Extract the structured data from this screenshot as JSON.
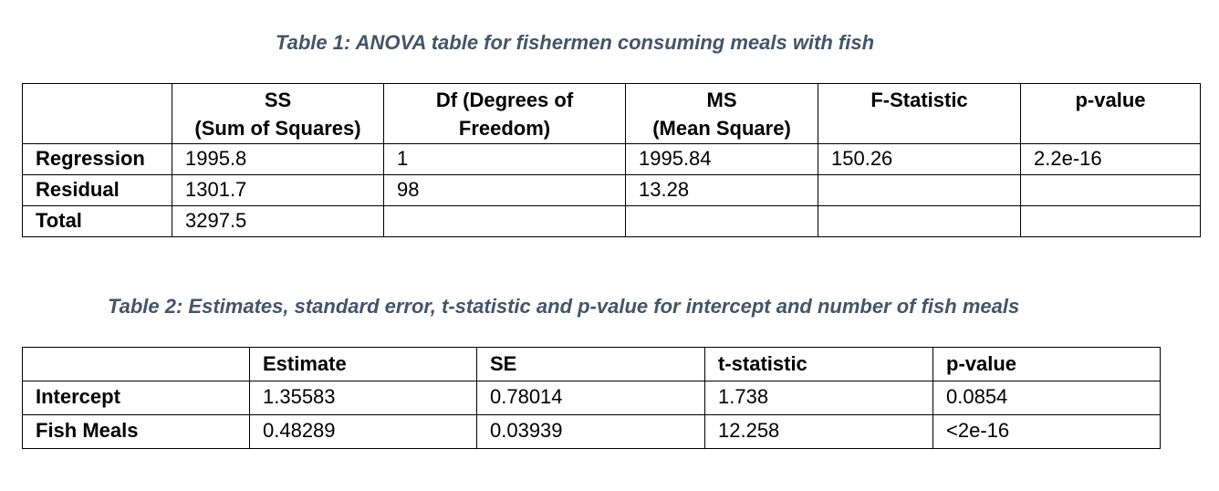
{
  "table1": {
    "caption": "Table 1: ANOVA table for fishermen consuming meals with fish",
    "headers": [
      {
        "line1": "",
        "line2": ""
      },
      {
        "line1": "SS",
        "line2": "(Sum of Squares)"
      },
      {
        "line1": "Df (Degrees of",
        "line2": "Freedom)"
      },
      {
        "line1": "MS",
        "line2": "(Mean Square)"
      },
      {
        "line1": "F-Statistic",
        "line2": ""
      },
      {
        "line1": "p-value",
        "line2": ""
      }
    ],
    "rows": [
      [
        "Regression",
        "1995.8",
        "1",
        "1995.84",
        "150.26",
        "2.2e-16"
      ],
      [
        "Residual",
        "1301.7",
        "98",
        "13.28",
        "",
        ""
      ],
      [
        "Total",
        "3297.5",
        "",
        "",
        "",
        ""
      ]
    ]
  },
  "table2": {
    "caption": "Table 2: Estimates, standard error, t-statistic and p-value for intercept and number of fish meals",
    "headers": [
      "",
      "Estimate",
      "SE",
      "t-statistic",
      "p-value"
    ],
    "rows": [
      [
        "Intercept",
        "1.35583",
        "0.78014",
        "1.738",
        "0.0854"
      ],
      [
        "Fish Meals",
        "0.48289",
        "0.03939",
        "12.258",
        "<2e-16"
      ]
    ]
  },
  "colors": {
    "caption": "#44546a",
    "border": "#000000"
  }
}
